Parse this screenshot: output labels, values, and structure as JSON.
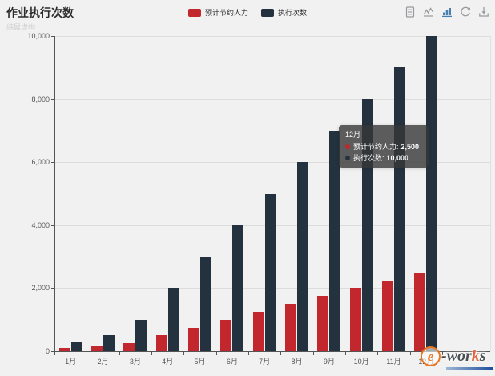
{
  "header": {
    "title": "作业执行次数",
    "subtitle": "纯属虚构",
    "legend": [
      {
        "label": "预计节约人力",
        "color": "#c1272d"
      },
      {
        "label": "执行次数",
        "color": "#24323f"
      }
    ]
  },
  "toolbar": {
    "icons": [
      {
        "name": "data-view-icon"
      },
      {
        "name": "line-chart-icon"
      },
      {
        "name": "bar-chart-icon",
        "active": true
      },
      {
        "name": "restore-icon"
      },
      {
        "name": "save-image-icon"
      }
    ],
    "accent_active": "#4a7eb0",
    "icon_gray": "#97999c"
  },
  "chart_data": {
    "type": "bar",
    "title": "作业执行次数",
    "subtitle": "纯属虚构",
    "categories": [
      "1月",
      "2月",
      "3月",
      "4月",
      "5月",
      "6月",
      "7月",
      "8月",
      "9月",
      "10月",
      "11月",
      "12月"
    ],
    "series": [
      {
        "name": "预计节约人力",
        "color": "#c1272d",
        "values": [
          100,
          150,
          250,
          500,
          750,
          1000,
          1250,
          1500,
          1750,
          2000,
          2250,
          2500
        ]
      },
      {
        "name": "执行次数",
        "color": "#24323f",
        "values": [
          300,
          500,
          1000,
          2000,
          3000,
          4000,
          5000,
          6000,
          7000,
          8000,
          9000,
          10000
        ]
      }
    ],
    "xlabel": "",
    "ylabel": "",
    "ylim": [
      0,
      10000
    ],
    "ytick_values": [
      0,
      2000,
      4000,
      6000,
      8000,
      10000
    ],
    "ytick_labels": [
      "0",
      "2,000",
      "4,000",
      "6,000",
      "8,000",
      "10,000"
    ],
    "grid": true,
    "legend_position": "top"
  },
  "tooltip": {
    "title": "12月",
    "rows": [
      {
        "label": "预计节约人力:",
        "value": "2,500",
        "color": "#c1272d"
      },
      {
        "label": "执行次数:",
        "value": "10,000",
        "color": "#24323f"
      }
    ]
  },
  "watermark": {
    "e": "e",
    "wor": "-wor",
    "k": "k",
    "s": "s"
  }
}
